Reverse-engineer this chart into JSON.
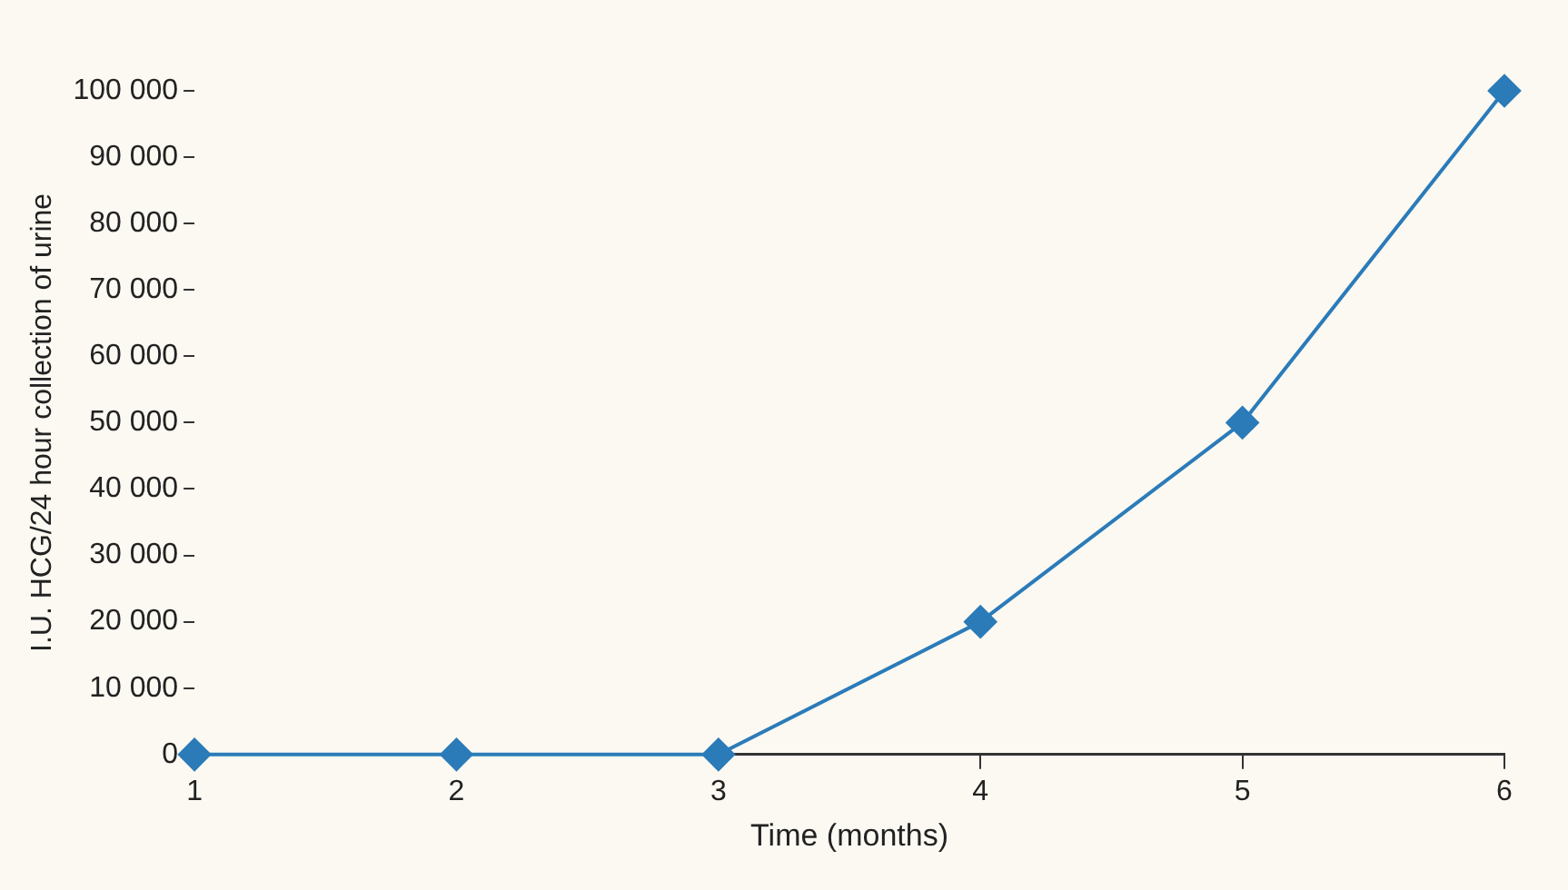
{
  "chart_data": {
    "type": "line",
    "xlabel": "Time (months)",
    "ylabel": "I.U. HCG/24 hour collection of urine",
    "x": [
      1,
      2,
      3,
      4,
      5,
      6
    ],
    "series": [
      {
        "color": "#2b7bb9",
        "values": [
          0,
          0,
          0,
          20000,
          50000,
          100000
        ]
      }
    ],
    "xlim": [
      1,
      6
    ],
    "xticks": [
      1,
      2,
      3,
      4,
      5,
      6
    ],
    "ylim": [
      0,
      100000
    ],
    "yticks": [
      0,
      {
        "value": 10000,
        "label": "10 000"
      },
      {
        "value": 20000,
        "label": "20 000"
      },
      {
        "value": 30000,
        "label": "30 000"
      },
      {
        "value": 40000,
        "label": "40 000"
      },
      {
        "value": 50000,
        "label": "50 000"
      },
      {
        "value": 60000,
        "label": "60 000"
      },
      {
        "value": 70000,
        "label": "70 000"
      },
      {
        "value": 80000,
        "label": "80 000"
      },
      {
        "value": 90000,
        "label": "90 000"
      },
      {
        "value": 100000,
        "label": "100 000"
      }
    ],
    "grid": false,
    "legend": false,
    "marker": "diamond",
    "line_style": "solid"
  }
}
